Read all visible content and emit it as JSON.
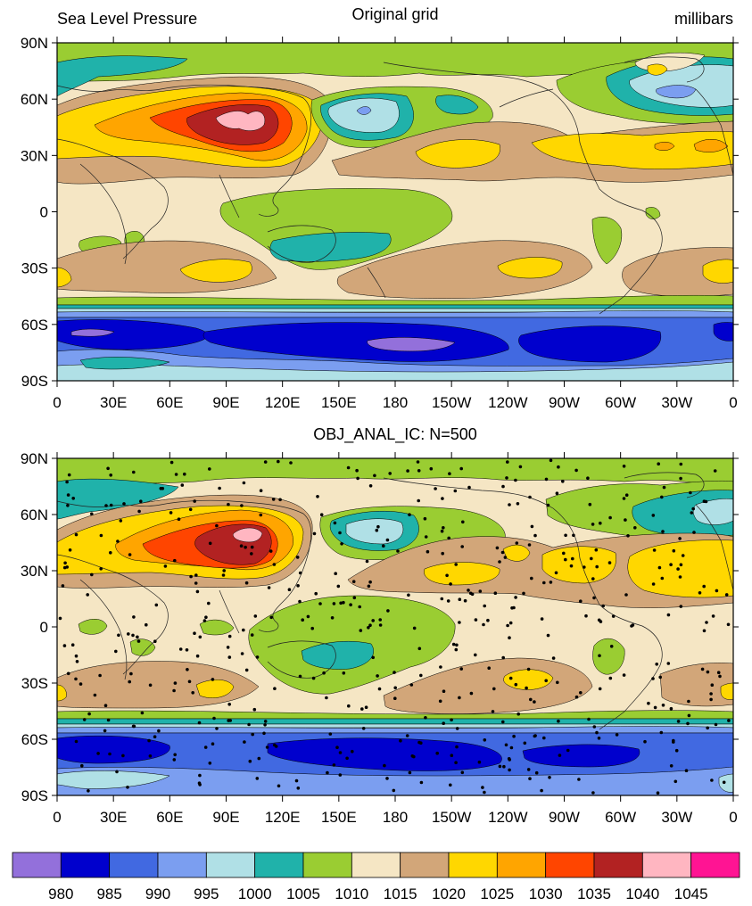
{
  "panel_top": {
    "title_left": "Sea Level Pressure",
    "title_center": "Original grid",
    "title_right": "millibars"
  },
  "panel_bottom": {
    "title_center": "OBJ_ANAL_IC: N=500"
  },
  "axes": {
    "lat_ticks": [
      "90N",
      "60N",
      "30N",
      "0",
      "30S",
      "60S",
      "90S"
    ],
    "lon_ticks": [
      "0",
      "30E",
      "60E",
      "90E",
      "120E",
      "150E",
      "180",
      "150W",
      "120W",
      "90W",
      "60W",
      "30W",
      "0"
    ]
  },
  "colorbar": {
    "colors": [
      "#9370db",
      "#0000cd",
      "#4169e1",
      "#7b9ef0",
      "#b0e0e6",
      "#20b2aa",
      "#9acd32",
      "#f5e6c4",
      "#d2a679",
      "#ffd700",
      "#ffa500",
      "#ff4500",
      "#b22222",
      "#ffb6c1",
      "#ff1493"
    ],
    "labels": [
      "980",
      "985",
      "990",
      "995",
      "1000",
      "1005",
      "1010",
      "1015",
      "1020",
      "1025",
      "1030",
      "1035",
      "1040",
      "1045"
    ]
  },
  "palette": {
    "pbg": "#f5e6c4",
    "c980": "#9370db",
    "c985": "#0000cd",
    "c990": "#4169e1",
    "c995": "#7b9ef0",
    "c1000": "#b0e0e6",
    "c1005": "#20b2aa",
    "c1010": "#9acd32",
    "c1015": "#f5e6c4",
    "c1020": "#d2a679",
    "c1025": "#ffd700",
    "c1030": "#ffa500",
    "c1035": "#ff4500",
    "c1040": "#b22222",
    "c1045": "#ffb6c1"
  }
}
